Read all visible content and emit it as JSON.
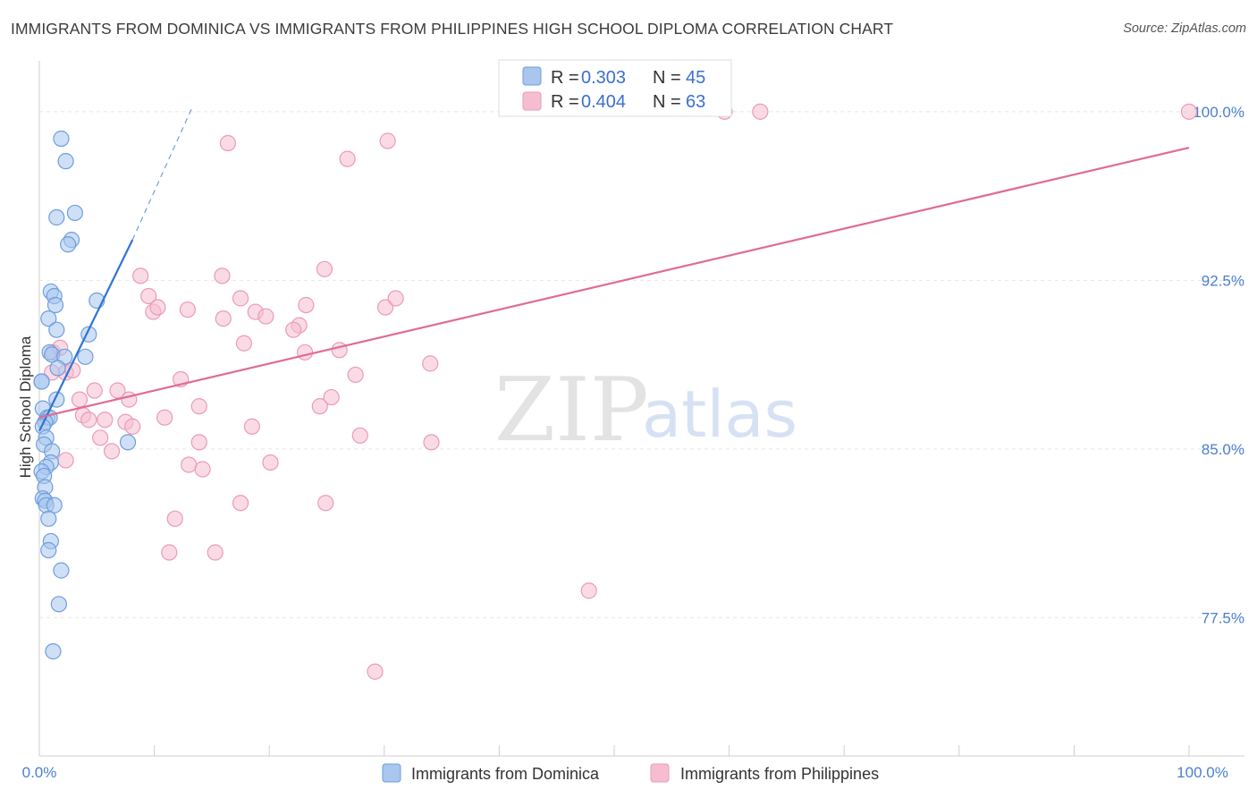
{
  "title": "IMMIGRANTS FROM DOMINICA VS IMMIGRANTS FROM PHILIPPINES HIGH SCHOOL DIPLOMA CORRELATION CHART",
  "source": "Source: ZipAtlas.com",
  "watermark": {
    "part1": "ZIP",
    "part2": "atlas"
  },
  "colors": {
    "blue_fill": "#a8c6ee",
    "blue_stroke": "#6d9ede",
    "blue_line": "#2f73d4",
    "pink_fill": "#f6bdd0",
    "pink_stroke": "#eb9ab6",
    "pink_line": "#e06b94",
    "axis_text": "#4a7fd0",
    "grid": "#e6e6e6"
  },
  "legend": {
    "r_label": "R =",
    "n_label": "N =",
    "rows": [
      {
        "series": "Immigrants from Dominica",
        "r": "0.303",
        "n": "45"
      },
      {
        "series": "Immigrants from Philippines",
        "r": "0.404",
        "n": "63"
      }
    ]
  },
  "chart_data": {
    "type": "scatter",
    "title": "IMMIGRANTS FROM DOMINICA VS IMMIGRANTS FROM PHILIPPINES HIGH SCHOOL DIPLOMA CORRELATION CHART",
    "xlabel": "",
    "ylabel": "High School Diploma",
    "xlim": [
      0,
      100
    ],
    "ylim": [
      71,
      101.8
    ],
    "y_ticks": [
      77.5,
      85.0,
      92.5,
      100.0
    ],
    "y_tick_labels": [
      "77.5%",
      "85.0%",
      "92.5%",
      "100.0%"
    ],
    "x_tick_labels": [
      "0.0%",
      "100.0%"
    ],
    "legend_position": "bottom",
    "series": [
      {
        "name": "Immigrants from Dominica",
        "color": "#a8c6ee",
        "points": [
          [
            1.9,
            98.8
          ],
          [
            2.3,
            97.8
          ],
          [
            3.1,
            95.5
          ],
          [
            1.5,
            95.3
          ],
          [
            2.8,
            94.3
          ],
          [
            2.5,
            94.1
          ],
          [
            1.0,
            92.0
          ],
          [
            1.3,
            91.8
          ],
          [
            1.4,
            91.4
          ],
          [
            5.0,
            91.6
          ],
          [
            0.8,
            90.8
          ],
          [
            1.5,
            90.3
          ],
          [
            4.3,
            90.1
          ],
          [
            0.9,
            89.3
          ],
          [
            1.1,
            89.2
          ],
          [
            4.0,
            89.1
          ],
          [
            2.2,
            89.1
          ],
          [
            1.6,
            88.6
          ],
          [
            0.2,
            88.0
          ],
          [
            1.5,
            87.2
          ],
          [
            0.3,
            86.8
          ],
          [
            0.7,
            86.4
          ],
          [
            0.9,
            86.4
          ],
          [
            0.5,
            86.2
          ],
          [
            0.3,
            86.0
          ],
          [
            0.6,
            85.5
          ],
          [
            7.7,
            85.3
          ],
          [
            0.4,
            85.2
          ],
          [
            1.1,
            84.9
          ],
          [
            1.0,
            84.4
          ],
          [
            0.6,
            84.2
          ],
          [
            0.2,
            84.0
          ],
          [
            0.4,
            83.8
          ],
          [
            0.5,
            83.3
          ],
          [
            0.3,
            82.8
          ],
          [
            0.5,
            82.7
          ],
          [
            0.6,
            82.5
          ],
          [
            1.3,
            82.5
          ],
          [
            0.8,
            81.9
          ],
          [
            1.0,
            80.9
          ],
          [
            0.8,
            80.5
          ],
          [
            1.9,
            79.6
          ],
          [
            1.7,
            78.1
          ],
          [
            1.2,
            76.0
          ],
          [
            0.2,
            88.0
          ]
        ]
      },
      {
        "name": "Immigrants from Philippines",
        "color": "#f6bdd0",
        "points": [
          [
            16.4,
            98.6
          ],
          [
            30.3,
            98.7
          ],
          [
            26.8,
            97.9
          ],
          [
            59.6,
            100.0
          ],
          [
            62.7,
            100.0
          ],
          [
            100.0,
            100.0
          ],
          [
            24.8,
            93.0
          ],
          [
            8.8,
            92.7
          ],
          [
            15.9,
            92.7
          ],
          [
            9.5,
            91.8
          ],
          [
            9.9,
            91.1
          ],
          [
            10.3,
            91.3
          ],
          [
            12.9,
            91.2
          ],
          [
            17.5,
            91.7
          ],
          [
            18.8,
            91.1
          ],
          [
            16.0,
            90.8
          ],
          [
            19.7,
            90.9
          ],
          [
            22.6,
            90.5
          ],
          [
            22.1,
            90.3
          ],
          [
            30.1,
            91.3
          ],
          [
            31.0,
            91.7
          ],
          [
            23.2,
            91.4
          ],
          [
            17.8,
            89.7
          ],
          [
            23.1,
            89.3
          ],
          [
            26.1,
            89.4
          ],
          [
            34.0,
            88.8
          ],
          [
            27.5,
            88.3
          ],
          [
            12.3,
            88.1
          ],
          [
            1.2,
            89.3
          ],
          [
            1.8,
            89.5
          ],
          [
            2.3,
            88.4
          ],
          [
            2.9,
            88.5
          ],
          [
            1.1,
            88.4
          ],
          [
            4.8,
            87.6
          ],
          [
            6.8,
            87.6
          ],
          [
            3.5,
            87.2
          ],
          [
            7.8,
            87.2
          ],
          [
            25.4,
            87.3
          ],
          [
            24.4,
            86.9
          ],
          [
            13.9,
            86.9
          ],
          [
            3.8,
            86.5
          ],
          [
            4.3,
            86.3
          ],
          [
            5.7,
            86.3
          ],
          [
            7.5,
            86.2
          ],
          [
            10.9,
            86.4
          ],
          [
            8.1,
            86.0
          ],
          [
            18.5,
            86.0
          ],
          [
            27.9,
            85.6
          ],
          [
            5.3,
            85.5
          ],
          [
            13.9,
            85.3
          ],
          [
            34.1,
            85.3
          ],
          [
            2.3,
            84.5
          ],
          [
            6.3,
            84.9
          ],
          [
            13.0,
            84.3
          ],
          [
            14.2,
            84.1
          ],
          [
            20.1,
            84.4
          ],
          [
            17.5,
            82.6
          ],
          [
            24.9,
            82.6
          ],
          [
            11.8,
            81.9
          ],
          [
            11.3,
            80.4
          ],
          [
            15.3,
            80.4
          ],
          [
            47.8,
            78.7
          ],
          [
            29.2,
            75.1
          ]
        ]
      }
    ],
    "trend_lines": [
      {
        "series": "Immigrants from Dominica",
        "solid": [
          [
            0.0,
            85.8
          ],
          [
            8.1,
            94.3
          ]
        ],
        "dashed_to": [
          13.3,
          100.2
        ]
      },
      {
        "series": "Immigrants from Philippines",
        "solid": [
          [
            0.0,
            86.4
          ],
          [
            100.0,
            98.4
          ]
        ]
      }
    ]
  }
}
